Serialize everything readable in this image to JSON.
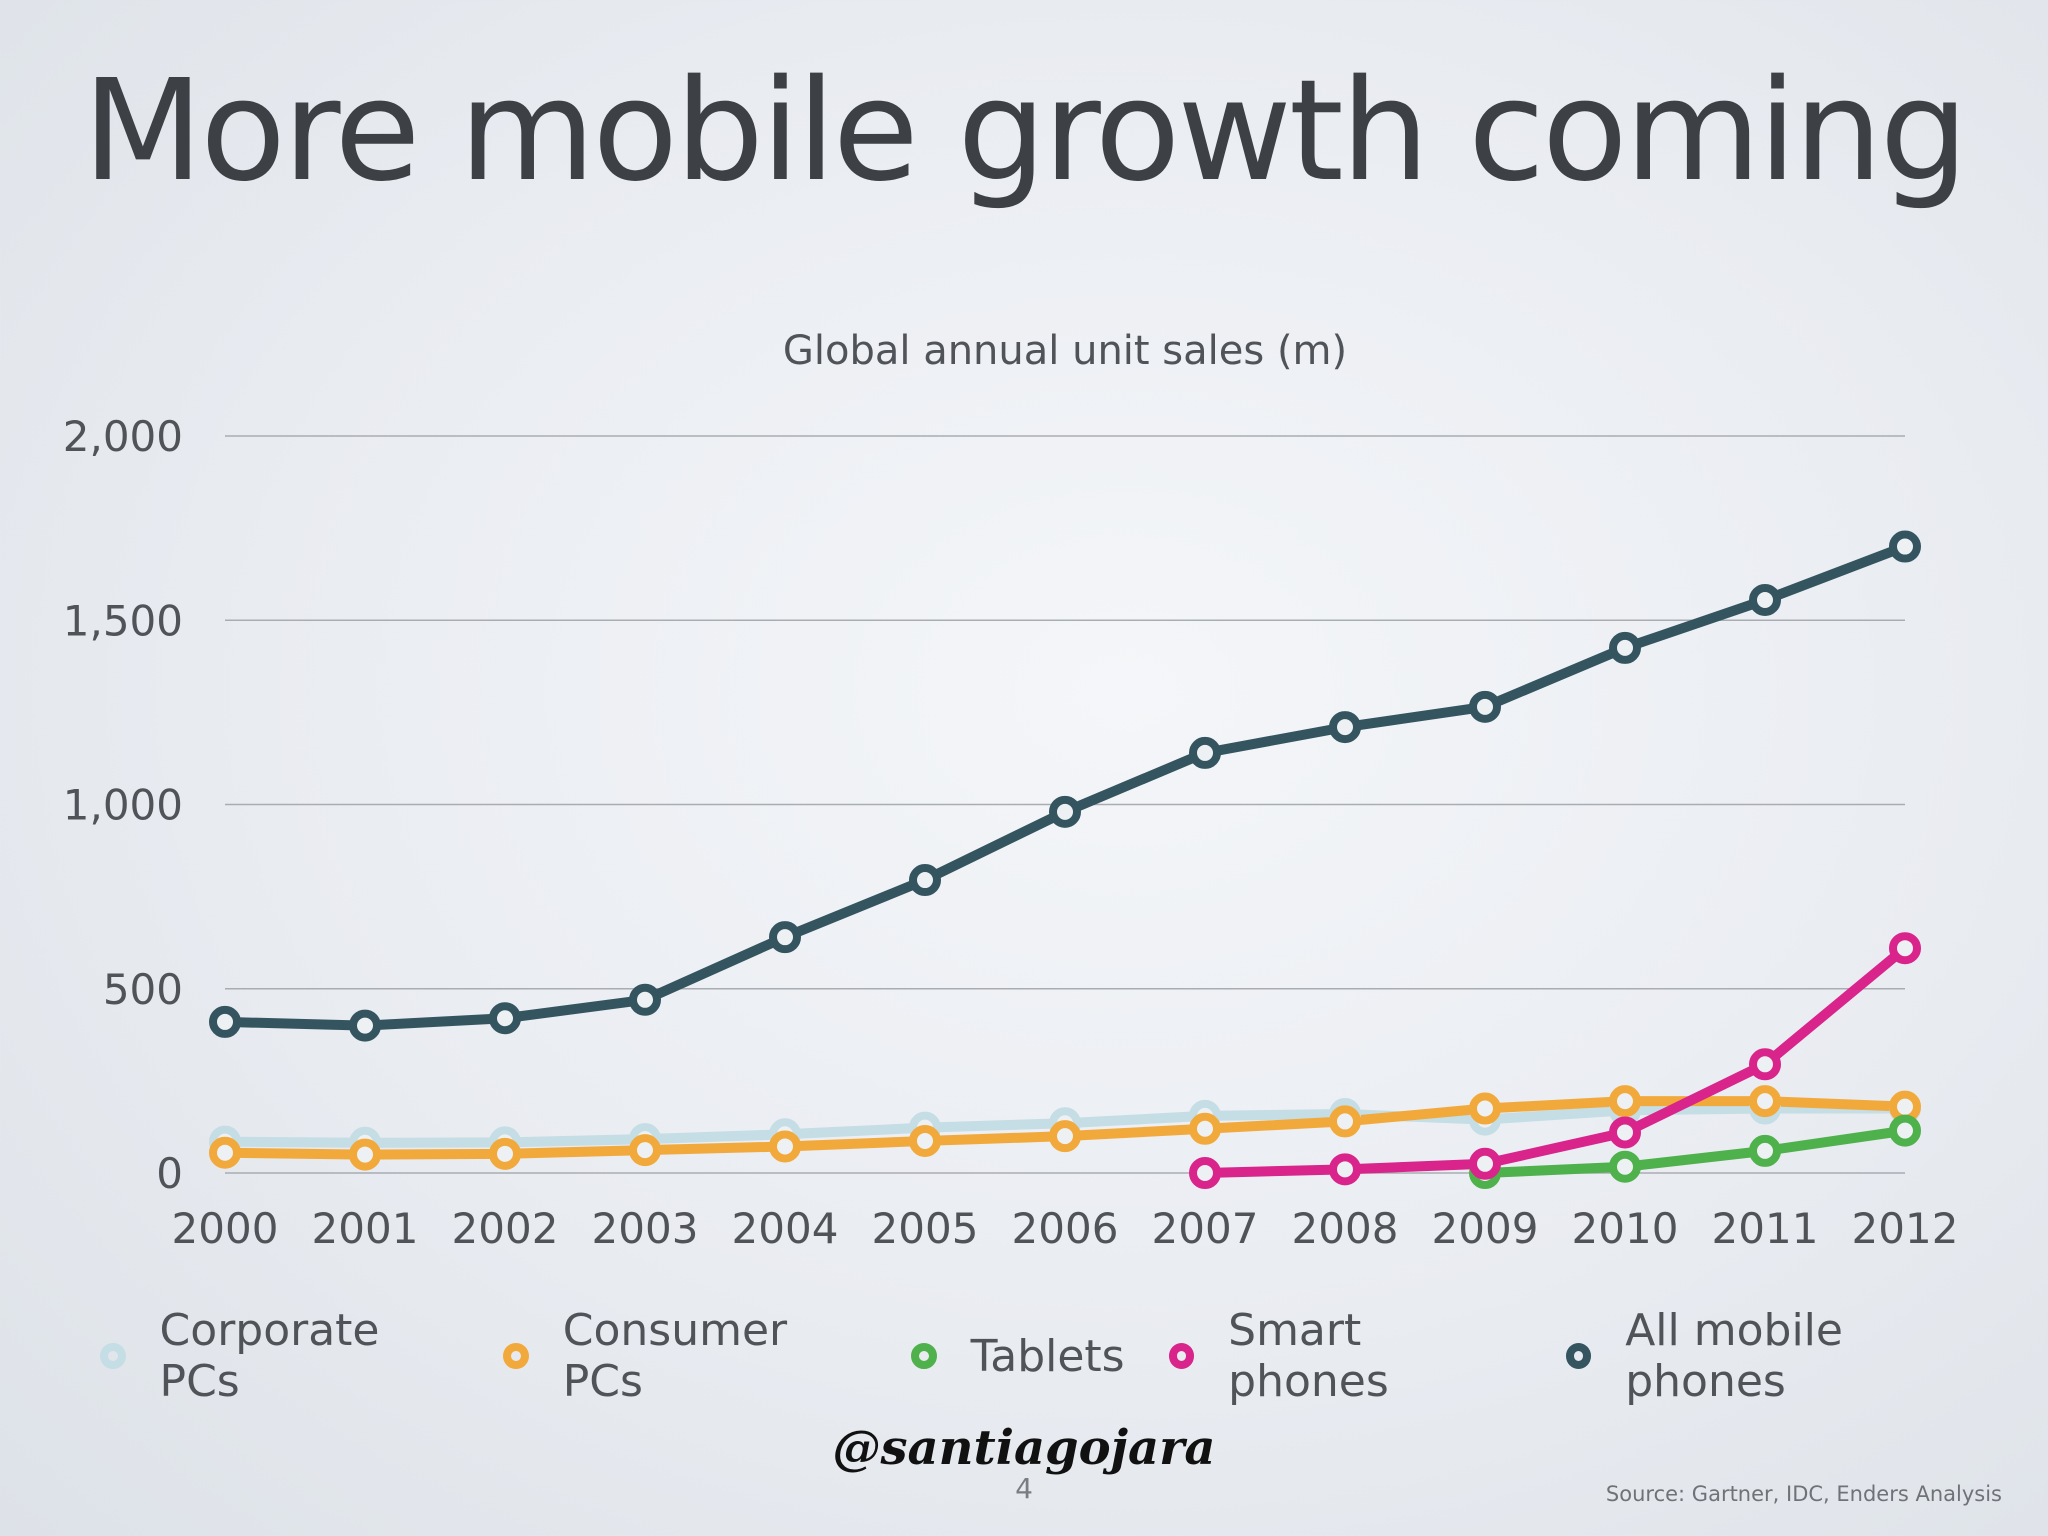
{
  "slide": {
    "title": "More mobile growth coming",
    "watermark": "@santiagojara",
    "page_number": "4",
    "source": "Source: Gartner, IDC, Enders Analysis"
  },
  "chart_data": {
    "type": "line",
    "title": "Global annual unit sales (m)",
    "xlabel": "",
    "ylabel": "",
    "ylim": [
      0,
      2000
    ],
    "y_ticks": [
      0,
      500,
      1000,
      1500,
      2000
    ],
    "y_tick_labels": [
      "0",
      "500",
      "1,000",
      "1,500",
      "2,000"
    ],
    "grid": true,
    "legend_position": "bottom",
    "categories": [
      "2000",
      "2001",
      "2002",
      "2003",
      "2004",
      "2005",
      "2006",
      "2007",
      "2008",
      "2009",
      "2010",
      "2011",
      "2012"
    ],
    "series": [
      {
        "name": "Corporate PCs",
        "color": "#c5dde4",
        "values": [
          85,
          82,
          83,
          92,
          105,
          123,
          135,
          155,
          160,
          145,
          170,
          175,
          175
        ]
      },
      {
        "name": "Consumer PCs",
        "color": "#f2a93b",
        "values": [
          55,
          50,
          52,
          62,
          72,
          87,
          100,
          120,
          140,
          175,
          195,
          195,
          180
        ]
      },
      {
        "name": "Tablets",
        "color": "#4eb14b",
        "values": [
          null,
          null,
          null,
          null,
          null,
          null,
          null,
          null,
          null,
          0,
          17,
          60,
          115
        ]
      },
      {
        "name": "Smart phones",
        "color": "#d8248b",
        "values": [
          null,
          null,
          null,
          null,
          null,
          null,
          null,
          0,
          10,
          25,
          110,
          295,
          610
        ]
      },
      {
        "name": "All mobile phones",
        "color": "#34555f",
        "values": [
          410,
          400,
          420,
          470,
          640,
          795,
          980,
          1140,
          1210,
          1265,
          1425,
          1555,
          1700
        ]
      }
    ]
  }
}
